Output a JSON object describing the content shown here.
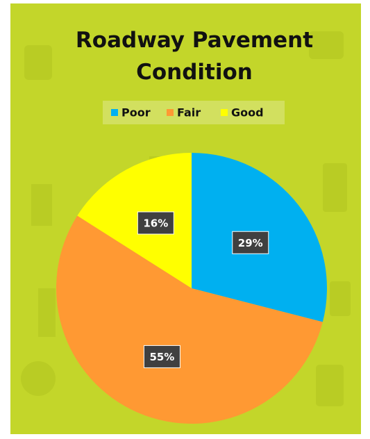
{
  "chart_data": {
    "type": "pie",
    "title": "Roadway Pavement Condition",
    "categories": [
      "Poor",
      "Fair",
      "Good"
    ],
    "values": [
      29,
      55,
      16
    ],
    "value_labels": [
      "29%",
      "55%",
      "16%"
    ],
    "colors": [
      "#00b0f0",
      "#ff9933",
      "#ffff00"
    ],
    "legend": "top"
  }
}
